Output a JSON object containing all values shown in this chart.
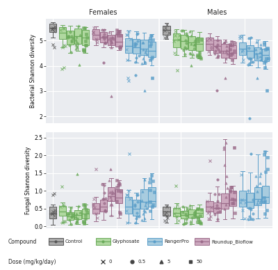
{
  "compounds": [
    "Control",
    "Glyphosate",
    "Roundup_Bioflow",
    "RangerPro"
  ],
  "compound_colors": {
    "Control": "#555555",
    "Glyphosate": "#6aaa5a",
    "Roundup_Bioflow": "#9b6b8a",
    "RangerPro": "#5a9ec9"
  },
  "compound_fill_colors": {
    "Control": "#aaaaaa",
    "Glyphosate": "#b0d8a0",
    "Roundup_Bioflow": "#cca8be",
    "RangerPro": "#a8ccdf"
  },
  "dose_markers": {
    "0": "x",
    "0.5": "o",
    "5": "^",
    "50": "s"
  },
  "sexes": [
    "Females",
    "Males"
  ],
  "bacterial_ylabel": "Bacterial Shannon diversity",
  "fungal_ylabel": "Fungal Shannon diversity",
  "bacterial_ylim": [
    1.75,
    5.85
  ],
  "fungal_ylim": [
    -0.05,
    2.65
  ],
  "bacterial_yticks": [
    2,
    3,
    4,
    5
  ],
  "fungal_yticks": [
    0.0,
    0.5,
    1.0,
    1.5,
    2.0,
    2.5
  ],
  "panel_bg": "#eaecf0",
  "bacterial_data": {
    "Females": {
      "Control": {
        "0": {
          "q1": 5.32,
          "median": 5.5,
          "q3": 5.65,
          "whislo": 5.1,
          "whishi": 5.72,
          "fliers": [
            4.85,
            4.72
          ]
        }
      },
      "Glyphosate": {
        "0": {
          "q1": 5.05,
          "median": 5.3,
          "q3": 5.52,
          "whislo": 4.72,
          "whishi": 5.62,
          "fliers": [
            3.88,
            3.92
          ]
        },
        "0.5": {
          "q1": 4.85,
          "median": 5.1,
          "q3": 5.38,
          "whislo": 4.52,
          "whishi": 5.58,
          "fliers": []
        },
        "5": {
          "q1": 4.88,
          "median": 5.18,
          "q3": 5.48,
          "whislo": 4.58,
          "whishi": 5.58,
          "fliers": [
            4.05
          ]
        },
        "50": {
          "q1": 4.82,
          "median": 5.12,
          "q3": 5.42,
          "whislo": 4.52,
          "whishi": 5.52,
          "fliers": []
        }
      },
      "Roundup_Bioflow": {
        "0": {
          "q1": 5.02,
          "median": 5.22,
          "q3": 5.45,
          "whislo": 4.82,
          "whishi": 5.55,
          "fliers": []
        },
        "0.5": {
          "q1": 4.92,
          "median": 5.12,
          "q3": 5.32,
          "whislo": 4.72,
          "whishi": 5.45,
          "fliers": [
            4.12
          ]
        },
        "5": {
          "q1": 4.82,
          "median": 5.02,
          "q3": 5.22,
          "whislo": 4.72,
          "whishi": 5.35,
          "fliers": [
            2.82
          ]
        },
        "50": {
          "q1": 4.75,
          "median": 4.95,
          "q3": 5.25,
          "whislo": 4.62,
          "whishi": 5.42,
          "fliers": []
        }
      },
      "RangerPro": {
        "0": {
          "q1": 4.52,
          "median": 4.78,
          "q3": 5.08,
          "whislo": 4.22,
          "whishi": 5.38,
          "fliers": [
            3.52,
            3.42
          ]
        },
        "0.5": {
          "q1": 4.48,
          "median": 4.72,
          "q3": 5.05,
          "whislo": 4.12,
          "whishi": 5.35,
          "fliers": [
            3.62
          ]
        },
        "5": {
          "q1": 4.42,
          "median": 4.68,
          "q3": 5.02,
          "whislo": 4.08,
          "whishi": 5.3,
          "fliers": [
            3.02
          ]
        },
        "50": {
          "q1": 4.35,
          "median": 4.6,
          "q3": 4.95,
          "whislo": 4.02,
          "whishi": 5.25,
          "fliers": [
            3.52
          ]
        }
      }
    },
    "Males": {
      "Control": {
        "0": {
          "q1": 5.22,
          "median": 5.42,
          "q3": 5.58,
          "whislo": 5.05,
          "whishi": 5.68,
          "fliers": []
        }
      },
      "Glyphosate": {
        "0": {
          "q1": 4.72,
          "median": 5.02,
          "q3": 5.28,
          "whislo": 4.42,
          "whishi": 5.45,
          "fliers": [
            3.82
          ]
        },
        "0.5": {
          "q1": 4.68,
          "median": 4.98,
          "q3": 5.22,
          "whislo": 4.38,
          "whishi": 5.42,
          "fliers": []
        },
        "5": {
          "q1": 4.62,
          "median": 4.92,
          "q3": 5.18,
          "whislo": 4.32,
          "whishi": 5.38,
          "fliers": [
            4.02
          ]
        },
        "50": {
          "q1": 4.58,
          "median": 4.88,
          "q3": 5.12,
          "whislo": 4.28,
          "whishi": 5.32,
          "fliers": []
        }
      },
      "Roundup_Bioflow": {
        "0": {
          "q1": 4.62,
          "median": 4.88,
          "q3": 5.12,
          "whislo": 4.42,
          "whishi": 5.28,
          "fliers": []
        },
        "0.5": {
          "q1": 4.52,
          "median": 4.78,
          "q3": 5.02,
          "whislo": 4.32,
          "whishi": 5.18,
          "fliers": [
            3.02
          ]
        },
        "5": {
          "q1": 4.32,
          "median": 4.58,
          "q3": 4.88,
          "whislo": 4.12,
          "whishi": 5.02,
          "fliers": [
            3.52
          ]
        },
        "50": {
          "q1": 4.28,
          "median": 4.52,
          "q3": 4.82,
          "whislo": 4.08,
          "whishi": 4.98,
          "fliers": []
        }
      },
      "RangerPro": {
        "0": {
          "q1": 4.42,
          "median": 4.68,
          "q3": 4.92,
          "whislo": 4.12,
          "whishi": 5.22,
          "fliers": []
        },
        "0.5": {
          "q1": 4.32,
          "median": 4.58,
          "q3": 4.82,
          "whislo": 4.02,
          "whishi": 5.12,
          "fliers": [
            1.92
          ]
        },
        "5": {
          "q1": 4.22,
          "median": 4.48,
          "q3": 4.72,
          "whislo": 3.92,
          "whishi": 5.02,
          "fliers": [
            3.52
          ]
        },
        "50": {
          "q1": 4.18,
          "median": 4.42,
          "q3": 4.68,
          "whislo": 3.88,
          "whishi": 4.98,
          "fliers": [
            3.02
          ]
        }
      }
    }
  },
  "fungal_data": {
    "Females": {
      "Control": {
        "0": {
          "q1": 0.22,
          "median": 0.35,
          "q3": 0.55,
          "whislo": 0.05,
          "whishi": 0.62,
          "fliers": [
            0.88,
            0.92
          ]
        }
      },
      "Glyphosate": {
        "0": {
          "q1": 0.3,
          "median": 0.42,
          "q3": 0.58,
          "whislo": 0.1,
          "whishi": 0.68,
          "fliers": [
            1.12
          ]
        },
        "0.5": {
          "q1": 0.18,
          "median": 0.28,
          "q3": 0.4,
          "whislo": 0.05,
          "whishi": 0.55,
          "fliers": []
        },
        "5": {
          "q1": 0.2,
          "median": 0.32,
          "q3": 0.46,
          "whislo": 0.06,
          "whishi": 0.58,
          "fliers": [
            1.48
          ]
        },
        "50": {
          "q1": 0.22,
          "median": 0.35,
          "q3": 0.5,
          "whislo": 0.07,
          "whishi": 0.62,
          "fliers": []
        }
      },
      "Roundup_Bioflow": {
        "0": {
          "q1": 0.35,
          "median": 0.5,
          "q3": 0.65,
          "whislo": 0.15,
          "whishi": 0.82,
          "fliers": [
            1.62
          ]
        },
        "0.5": {
          "q1": 0.42,
          "median": 0.55,
          "q3": 0.75,
          "whislo": 0.18,
          "whishi": 1.22,
          "fliers": []
        },
        "5": {
          "q1": 0.72,
          "median": 0.85,
          "q3": 1.1,
          "whislo": 0.3,
          "whishi": 1.35,
          "fliers": [
            1.62
          ]
        },
        "50": {
          "q1": 0.65,
          "median": 0.8,
          "q3": 1.05,
          "whislo": 0.25,
          "whishi": 1.3,
          "fliers": []
        }
      },
      "RangerPro": {
        "0": {
          "q1": 0.35,
          "median": 0.55,
          "q3": 0.82,
          "whislo": 0.1,
          "whishi": 1.02,
          "fliers": [
            2.05
          ]
        },
        "0.5": {
          "q1": 0.3,
          "median": 0.5,
          "q3": 0.75,
          "whislo": 0.08,
          "whishi": 0.95,
          "fliers": []
        },
        "5": {
          "q1": 0.5,
          "median": 0.7,
          "q3": 1.05,
          "whislo": 0.15,
          "whishi": 1.35,
          "fliers": [
            1.32
          ]
        },
        "50": {
          "q1": 0.55,
          "median": 0.72,
          "q3": 1.1,
          "whislo": 0.2,
          "whishi": 1.5,
          "fliers": []
        }
      }
    },
    "Males": {
      "Control": {
        "0": {
          "q1": 0.3,
          "median": 0.42,
          "q3": 0.55,
          "whislo": 0.1,
          "whishi": 0.62,
          "fliers": []
        }
      },
      "Glyphosate": {
        "0": {
          "q1": 0.28,
          "median": 0.38,
          "q3": 0.52,
          "whislo": 0.08,
          "whishi": 0.65,
          "fliers": [
            1.15
          ]
        },
        "0.5": {
          "q1": 0.22,
          "median": 0.32,
          "q3": 0.44,
          "whislo": 0.06,
          "whishi": 0.56,
          "fliers": []
        },
        "5": {
          "q1": 0.24,
          "median": 0.34,
          "q3": 0.48,
          "whislo": 0.07,
          "whishi": 0.6,
          "fliers": []
        },
        "50": {
          "q1": 0.26,
          "median": 0.37,
          "q3": 0.5,
          "whislo": 0.08,
          "whishi": 0.62,
          "fliers": []
        }
      },
      "Roundup_Bioflow": {
        "0": {
          "q1": 0.42,
          "median": 0.55,
          "q3": 0.72,
          "whislo": 0.18,
          "whishi": 0.95,
          "fliers": [
            1.85
          ]
        },
        "0.5": {
          "q1": 0.38,
          "median": 0.52,
          "q3": 0.68,
          "whislo": 0.15,
          "whishi": 1.12,
          "fliers": [
            1.32
          ]
        },
        "5": {
          "q1": 0.5,
          "median": 0.65,
          "q3": 0.92,
          "whislo": 0.2,
          "whishi": 2.45,
          "fliers": []
        },
        "50": {
          "q1": 0.58,
          "median": 0.75,
          "q3": 1.0,
          "whislo": 0.22,
          "whishi": 1.15,
          "fliers": [
            2.22
          ]
        }
      },
      "RangerPro": {
        "0": {
          "q1": 0.55,
          "median": 0.75,
          "q3": 1.0,
          "whislo": 0.2,
          "whishi": 1.55,
          "fliers": []
        },
        "0.5": {
          "q1": 0.52,
          "median": 0.7,
          "q3": 0.95,
          "whislo": 0.18,
          "whishi": 1.52,
          "fliers": [
            2.05
          ]
        },
        "5": {
          "q1": 0.6,
          "median": 0.78,
          "q3": 1.1,
          "whislo": 0.22,
          "whishi": 2.02,
          "fliers": []
        },
        "50": {
          "q1": 0.65,
          "median": 0.82,
          "q3": 1.15,
          "whislo": 0.25,
          "whishi": 2.12,
          "fliers": []
        }
      }
    }
  }
}
